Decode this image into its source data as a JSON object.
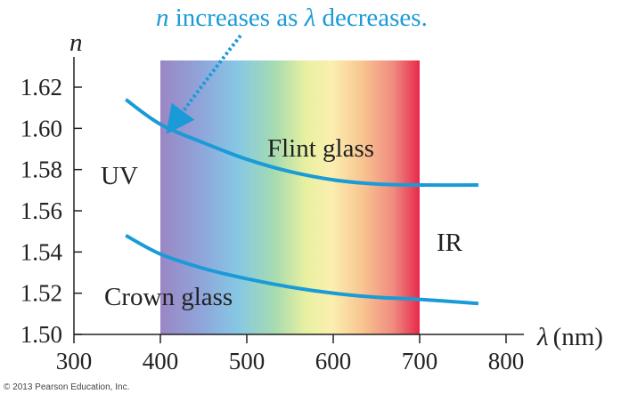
{
  "chart_data": {
    "type": "line",
    "title": "",
    "xlabel_symbol": "λ",
    "xlabel_units": "(nm)",
    "ylabel": "n",
    "xlim": [
      300,
      800
    ],
    "ylim": [
      1.5,
      1.63
    ],
    "xticks": [
      "300",
      "400",
      "500",
      "600",
      "700",
      "800"
    ],
    "yticks": [
      "1.50",
      "1.52",
      "1.54",
      "1.56",
      "1.58",
      "1.60",
      "1.62"
    ],
    "visible_band_nm": [
      400,
      700
    ],
    "series": [
      {
        "name": "Flint glass",
        "x": [
          360,
          400,
          450,
          500,
          550,
          600,
          650,
          700,
          768
        ],
        "y": [
          1.614,
          1.602,
          1.593,
          1.585,
          1.579,
          1.575,
          1.573,
          1.5725,
          1.5725
        ]
      },
      {
        "name": "Crown glass",
        "x": [
          360,
          400,
          450,
          500,
          550,
          600,
          650,
          700,
          768
        ],
        "y": [
          1.548,
          1.539,
          1.532,
          1.527,
          1.523,
          1.52,
          1.518,
          1.517,
          1.515
        ]
      }
    ],
    "region_labels": {
      "uv": "UV",
      "ir": "IR"
    },
    "annotation": {
      "italic_n": "n",
      "middle": " increases as ",
      "italic_lambda": "λ",
      "end": " decreases."
    }
  },
  "copyright": "© 2013 Pearson Education, Inc.",
  "colors": {
    "curve": "#1a9bd7",
    "axis": "#222222",
    "annotation": "#1a9bd7"
  }
}
